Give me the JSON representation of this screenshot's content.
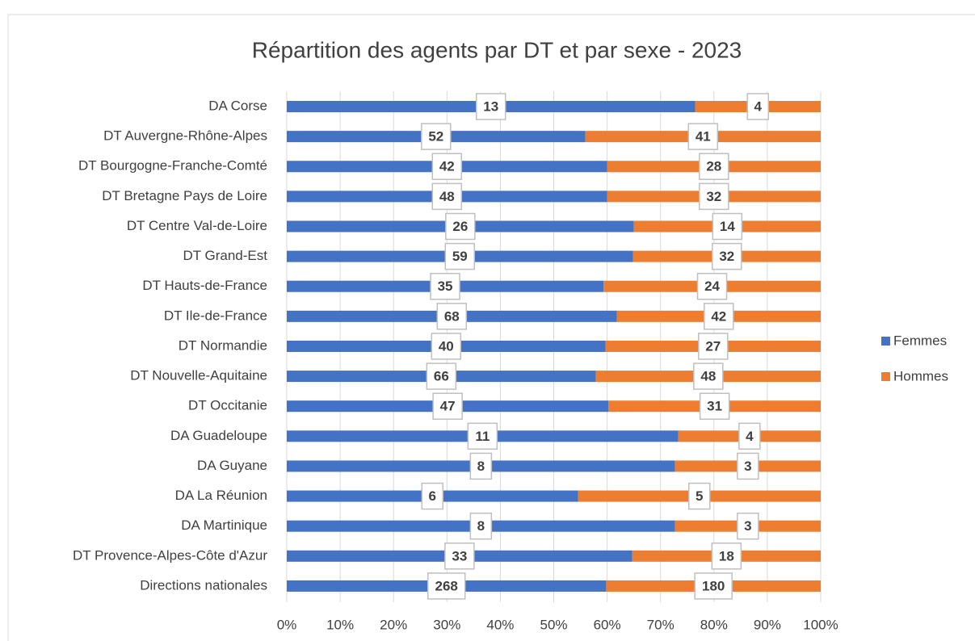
{
  "chart_data": {
    "type": "bar",
    "orientation": "horizontal",
    "stacking": "percent",
    "title": "Répartition des agents par DT et par sexe - 2023",
    "categories": [
      "DA Corse",
      "DT Auvergne-Rhône-Alpes",
      "DT Bourgogne-Franche-Comté",
      "DT Bretagne Pays de Loire",
      "DT Centre Val-de-Loire",
      "DT Grand-Est",
      "DT Hauts-de-France",
      "DT Ile-de-France",
      "DT Normandie",
      "DT Nouvelle-Aquitaine",
      "DT Occitanie",
      "DA Guadeloupe",
      "DA Guyane",
      "DA La Réunion",
      "DA Martinique",
      "DT Provence-Alpes-Côte d'Azur",
      "Directions nationales"
    ],
    "series": [
      {
        "name": "Femmes",
        "color": "#4472c4",
        "values": [
          13,
          52,
          42,
          48,
          26,
          59,
          35,
          68,
          40,
          66,
          47,
          11,
          8,
          6,
          8,
          33,
          268
        ]
      },
      {
        "name": "Hommes",
        "color": "#ed7d31",
        "values": [
          4,
          41,
          28,
          32,
          14,
          32,
          24,
          42,
          27,
          48,
          31,
          4,
          3,
          5,
          3,
          18,
          180
        ]
      }
    ],
    "xlim": [
      0,
      100
    ],
    "xticks": [
      {
        "value": 0,
        "label": "0%"
      },
      {
        "value": 10,
        "label": "10%"
      },
      {
        "value": 20,
        "label": "20%"
      },
      {
        "value": 30,
        "label": "30%"
      },
      {
        "value": 40,
        "label": "40%"
      },
      {
        "value": 50,
        "label": "50%"
      },
      {
        "value": 60,
        "label": "60%"
      },
      {
        "value": 70,
        "label": "70%"
      },
      {
        "value": 80,
        "label": "80%"
      },
      {
        "value": 90,
        "label": "90%"
      },
      {
        "value": 100,
        "label": "100%"
      }
    ],
    "grid": true,
    "legend": "right"
  }
}
